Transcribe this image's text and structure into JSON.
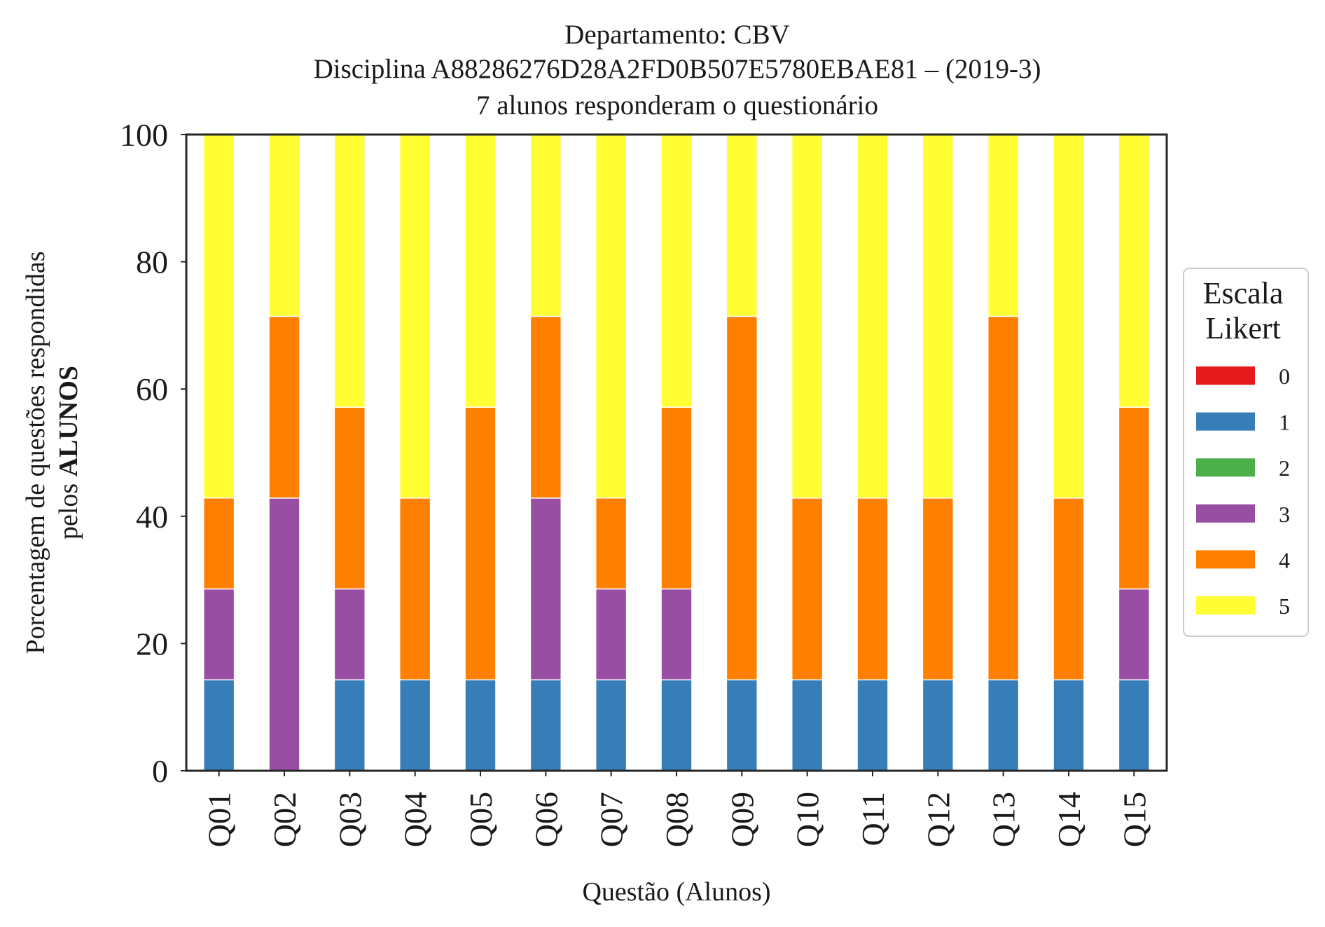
{
  "chart_data": {
    "type": "bar",
    "stacked": true,
    "title": {
      "line1": "Departamento: CBV",
      "line2": "Disciplina A88286276D28A2FD0B507E5780EBAE81 – (2019-3)",
      "line3": "7 alunos responderam o questionário"
    },
    "ylabel": {
      "line1": "Porcentagem de questões respondidas",
      "line2_prefix": "pelos ",
      "line2_bold": "ALUNOS"
    },
    "xlabel": "Questão (Alunos)",
    "ylim": [
      0,
      100
    ],
    "yticks": [
      "0",
      "20",
      "40",
      "60",
      "80",
      "100"
    ],
    "grid": false,
    "categories": [
      "Q01",
      "Q02",
      "Q03",
      "Q04",
      "Q05",
      "Q06",
      "Q07",
      "Q08",
      "Q09",
      "Q10",
      "Q11",
      "Q12",
      "Q13",
      "Q14",
      "Q15"
    ],
    "legend": {
      "title_line1": "Escala",
      "title_line2": "Likert",
      "placement": "right-outside"
    },
    "series": [
      {
        "name": "0",
        "color": "#e41a1c",
        "values": [
          0,
          0,
          0,
          0,
          0,
          0,
          0,
          0,
          0,
          0,
          0,
          0,
          0,
          0,
          0
        ]
      },
      {
        "name": "1",
        "color": "#377eb8",
        "values": [
          14.29,
          0,
          14.29,
          14.29,
          14.29,
          14.29,
          14.29,
          14.29,
          14.29,
          14.29,
          14.29,
          14.29,
          14.29,
          14.29,
          14.29
        ]
      },
      {
        "name": "2",
        "color": "#4daf4a",
        "values": [
          0,
          0,
          0,
          0,
          0,
          0,
          0,
          0,
          0,
          0,
          0,
          0,
          0,
          0,
          0
        ]
      },
      {
        "name": "3",
        "color": "#984ea3",
        "values": [
          14.29,
          42.86,
          14.29,
          0,
          0,
          28.57,
          14.29,
          14.29,
          0,
          0,
          0,
          0,
          0,
          0,
          14.29
        ]
      },
      {
        "name": "4",
        "color": "#ff7f00",
        "values": [
          14.29,
          28.57,
          28.57,
          28.57,
          42.86,
          28.57,
          14.29,
          28.57,
          57.14,
          28.57,
          28.57,
          28.57,
          57.14,
          28.57,
          28.57
        ]
      },
      {
        "name": "5",
        "color": "#ffff33",
        "values": [
          57.14,
          28.57,
          42.86,
          57.14,
          42.86,
          28.57,
          57.14,
          42.86,
          28.57,
          57.14,
          57.14,
          57.14,
          28.57,
          57.14,
          42.86
        ]
      }
    ]
  }
}
